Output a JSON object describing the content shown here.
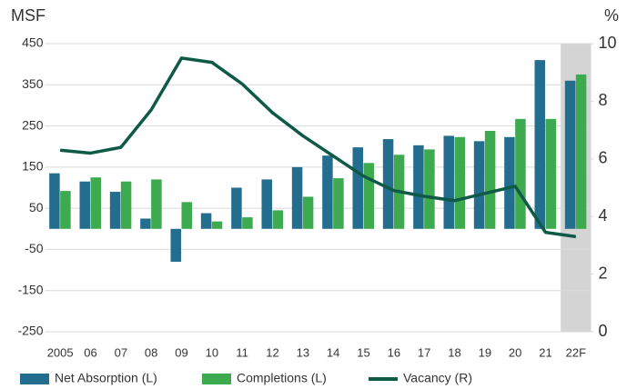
{
  "chart_data": {
    "type": "bar-line",
    "y_label": "MSF",
    "y2_label": "%",
    "categories": [
      "2005",
      "06",
      "07",
      "08",
      "09",
      "10",
      "11",
      "12",
      "13",
      "14",
      "15",
      "16",
      "17",
      "18",
      "19",
      "20",
      "21",
      "22F"
    ],
    "series": [
      {
        "name": "Net Absorption (L)",
        "type": "bar",
        "color": "#236e8e",
        "values": [
          135,
          115,
          90,
          25,
          -80,
          38,
          100,
          120,
          150,
          178,
          198,
          218,
          203,
          226,
          213,
          223,
          410,
          360
        ]
      },
      {
        "name": "Completions (L)",
        "type": "bar",
        "color": "#3daa4f",
        "values": [
          92,
          125,
          115,
          120,
          65,
          18,
          28,
          45,
          78,
          123,
          160,
          180,
          193,
          223,
          238,
          267,
          267,
          375
        ]
      },
      {
        "name": "Vacancy (R)",
        "type": "line",
        "axis": "y2",
        "color": "#0f5a46",
        "values": [
          6.3,
          6.2,
          6.4,
          7.7,
          9.5,
          9.35,
          8.6,
          7.6,
          6.8,
          6.1,
          5.4,
          4.9,
          4.7,
          4.55,
          4.8,
          5.05,
          3.45,
          3.3
        ]
      }
    ],
    "ylim": [
      -250,
      450
    ],
    "yticks": [
      -250,
      -150,
      -50,
      50,
      150,
      250,
      350,
      450
    ],
    "y2lim": [
      0,
      10
    ],
    "y2ticks": [
      0,
      2,
      4,
      6,
      8,
      10
    ],
    "grid": true,
    "legend": "bottom"
  }
}
